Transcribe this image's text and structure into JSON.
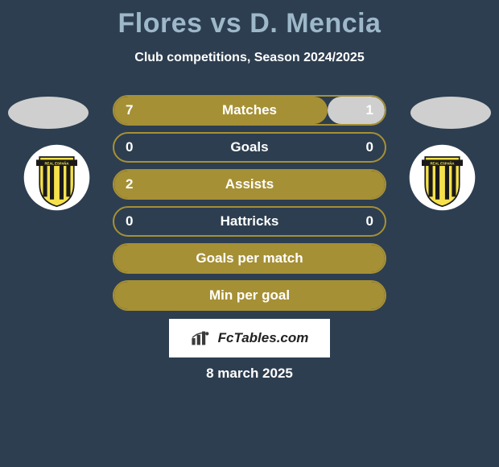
{
  "title": "Flores vs D. Mencia",
  "subtitle": "Club competitions, Season 2024/2025",
  "date": "8 march 2025",
  "fctables_label": "FcTables.com",
  "colors": {
    "page_bg": "#2d3e50",
    "title": "#9db8c9",
    "bar_primary": "#a69035",
    "bar_secondary": "#cfcfcf",
    "border": "#a69035",
    "oval": "#cfcfcf"
  },
  "club_badge": {
    "bg": "#ffffff",
    "shield_fill": "#f5e14c",
    "shield_stroke": "#1a1a1a",
    "banner": "#1a1a1a",
    "stripe": "#f5e14c"
  },
  "stats": [
    {
      "label": "Matches",
      "left_value": "7",
      "right_value": "1",
      "left_pct": 79,
      "right_pct": 21,
      "left_color": "#a69035",
      "right_color": "#cfcfcf",
      "border": "#a69035"
    },
    {
      "label": "Goals",
      "left_value": "0",
      "right_value": "0",
      "left_pct": 0,
      "right_pct": 0,
      "left_color": "#a69035",
      "right_color": "#cfcfcf",
      "border": "#a69035"
    },
    {
      "label": "Assists",
      "left_value": "2",
      "right_value": "",
      "left_pct": 100,
      "right_pct": 0,
      "left_color": "#a69035",
      "right_color": "#cfcfcf",
      "border": "#a69035"
    },
    {
      "label": "Hattricks",
      "left_value": "0",
      "right_value": "0",
      "left_pct": 0,
      "right_pct": 0,
      "left_color": "#a69035",
      "right_color": "#cfcfcf",
      "border": "#a69035"
    },
    {
      "label": "Goals per match",
      "left_value": "",
      "right_value": "",
      "left_pct": 100,
      "right_pct": 0,
      "left_color": "#a69035",
      "right_color": "#cfcfcf",
      "border": "#a69035"
    },
    {
      "label": "Min per goal",
      "left_value": "",
      "right_value": "",
      "left_pct": 100,
      "right_pct": 0,
      "left_color": "#a69035",
      "right_color": "#cfcfcf",
      "border": "#a69035"
    }
  ]
}
